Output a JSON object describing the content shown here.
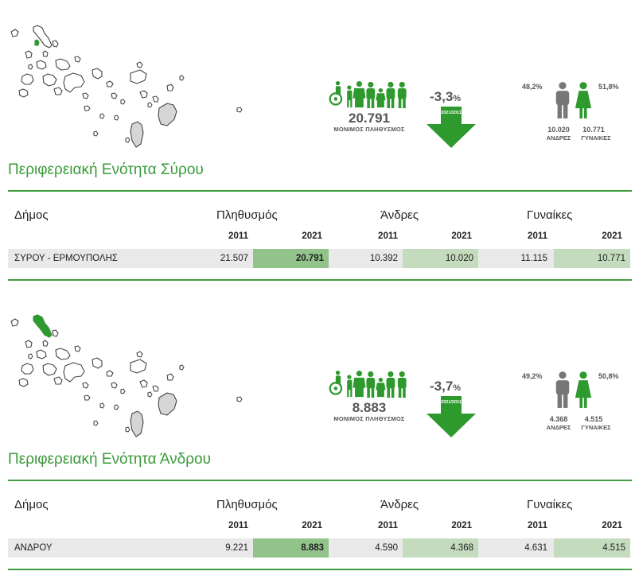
{
  "sections": [
    {
      "region_title": "Περιφερειακή Ενότητα Σύρου",
      "population_total": "20.791",
      "population_label": "ΜΟΝΙΜΟΣ ΠΛΗΘΥΣΜΟΣ",
      "change_pct": "-3,3",
      "change_unit": "%",
      "change_years": "2021/2011",
      "male_pct": "48,2%",
      "female_pct": "51,8%",
      "male_count": "10.020",
      "female_count": "10.771",
      "male_label": "ΑΝΔΡΕΣ",
      "female_label": "ΓΥΝΑΙΚΕΣ",
      "highlighted_island": "syros",
      "table": {
        "col_municipality": "Δήμος",
        "col_population": "Πληθυσμός",
        "col_men": "Άνδρες",
        "col_women": "Γυναίκες",
        "year_a": "2011",
        "year_b": "2021",
        "rows": [
          {
            "name": "ΣΥΡΟΥ - ΕΡΜΟΥΠΟΛΗΣ",
            "pop_2011": "21.507",
            "pop_2021": "20.791",
            "men_2011": "10.392",
            "men_2021": "10.020",
            "women_2011": "11.115",
            "women_2021": "10.771"
          }
        ]
      }
    },
    {
      "region_title": "Περιφερειακή Ενότητα Άνδρου",
      "population_total": "8.883",
      "population_label": "ΜΟΝΙΜΟΣ ΠΛΗΘΥΣΜΟΣ",
      "change_pct": "-3,7",
      "change_unit": "%",
      "change_years": "2021/2011",
      "male_pct": "49,2%",
      "female_pct": "50,8%",
      "male_count": "4.368",
      "female_count": "4.515",
      "male_label": "ΑΝΔΡΕΣ",
      "female_label": "ΓΥΝΑΙΚΕΣ",
      "highlighted_island": "andros",
      "table": {
        "col_municipality": "Δήμος",
        "col_population": "Πληθυσμός",
        "col_men": "Άνδρες",
        "col_women": "Γυναίκες",
        "year_a": "2011",
        "year_b": "2021",
        "rows": [
          {
            "name": "ΑΝΔΡΟΥ",
            "pop_2011": "9.221",
            "pop_2021": "8.883",
            "men_2011": "4.590",
            "men_2021": "4.368",
            "women_2011": "4.631",
            "women_2021": "4.515"
          }
        ]
      }
    }
  ],
  "colors": {
    "green": "#3a9a3a",
    "green_arrow": "#2e9a2e",
    "highlight_strong": "#91c38a",
    "highlight_light": "#c4dcbd",
    "row_bg": "#e9e9e9",
    "gray_icon": "#777777"
  }
}
